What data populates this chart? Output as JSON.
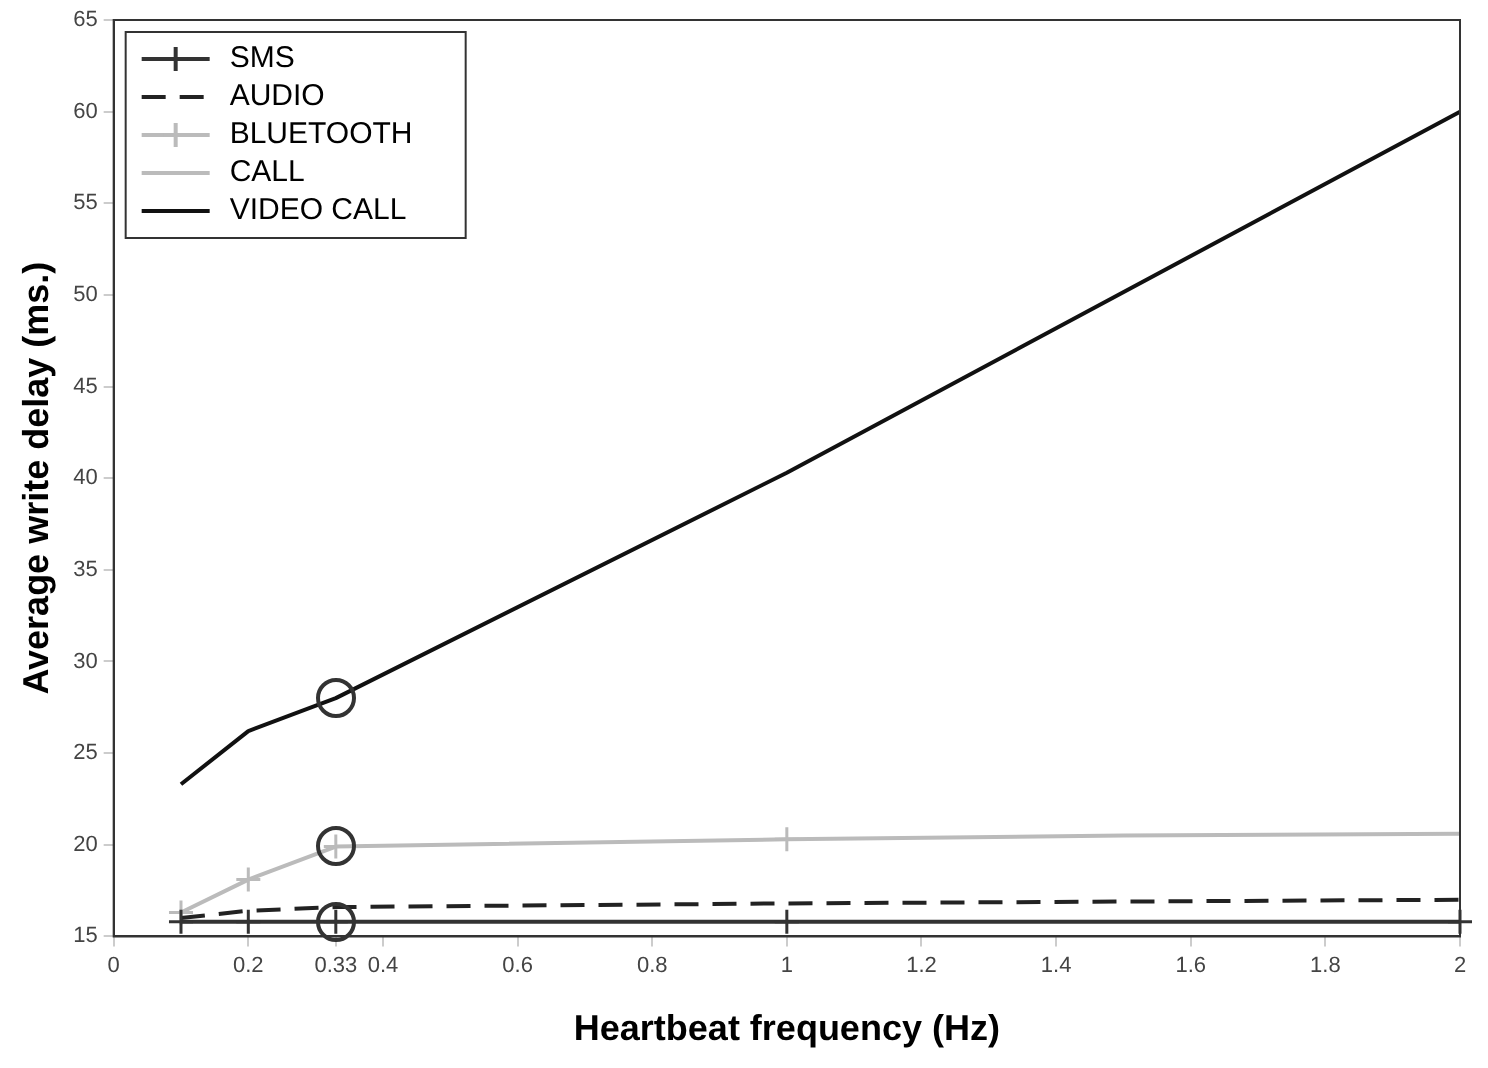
{
  "chart_data": {
    "type": "line",
    "xlabel": "Heartbeat frequency (Hz)",
    "ylabel": "Average write delay (ms.)",
    "xlim": [
      0,
      2
    ],
    "xticks": [
      0,
      0.2,
      0.33,
      0.4,
      0.6,
      0.8,
      1,
      1.2,
      1.4,
      1.6,
      1.8,
      2
    ],
    "ylim": [
      15,
      65
    ],
    "yticks": [
      15,
      20,
      25,
      30,
      35,
      40,
      45,
      50,
      55,
      60,
      65
    ],
    "grid": false,
    "legend": "top left",
    "series": [
      {
        "name": "SMS",
        "color": "#333333",
        "marker": "cross",
        "line_style": "solid",
        "x": [
          0.1,
          0.2,
          0.33,
          1,
          2
        ],
        "values": [
          15.8,
          15.8,
          15.8,
          15.8,
          15.8
        ]
      },
      {
        "name": "AUDIO",
        "color": "#222222",
        "marker": "none",
        "line_style": "dashed",
        "x": [
          0.1,
          0.2,
          0.33,
          1,
          1.5,
          2
        ],
        "values": [
          16.0,
          16.4,
          16.6,
          16.8,
          16.9,
          17.0
        ]
      },
      {
        "name": "BLUETOOTH",
        "color": "#bbbbbb",
        "marker": "cross",
        "line_style": "solid",
        "x": [
          0.1,
          0.2,
          0.33,
          1
        ],
        "values": [
          16.3,
          18.1,
          19.9,
          20.3
        ]
      },
      {
        "name": "CALL",
        "color": "#bbbbbb",
        "marker": "none",
        "line_style": "solid",
        "x": [
          1,
          1.5,
          2
        ],
        "values": [
          20.3,
          20.5,
          20.6
        ]
      },
      {
        "name": "VIDEO CALL",
        "color": "#111111",
        "marker": "none",
        "line_style": "solid",
        "x": [
          0.1,
          0.2,
          0.33,
          1,
          2
        ],
        "values": [
          23.3,
          26.2,
          28.0,
          40.3,
          60.0
        ]
      }
    ]
  }
}
